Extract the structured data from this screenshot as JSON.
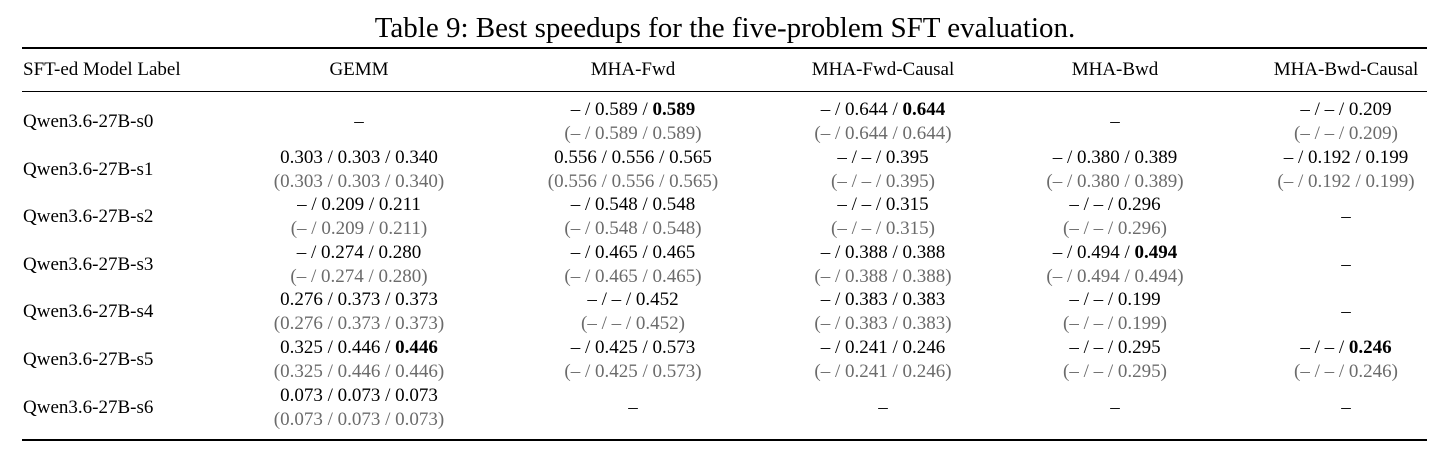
{
  "caption": "Table 9: Best speedups for the five-problem SFT evaluation.",
  "headers": [
    "SFT-ed Model Label",
    "GEMM",
    "MHA-Fwd",
    "MHA-Fwd-Causal",
    "MHA-Bwd",
    "MHA-Bwd-Causal"
  ],
  "rows": [
    {
      "label": "Qwen3.6-27B-s0",
      "cells": [
        {
          "dash": "–"
        },
        {
          "a": "– / 0.589 / ",
          "b": "0.589",
          "sub": "(– / 0.589 / 0.589)"
        },
        {
          "a": "– / 0.644 / ",
          "b": "0.644",
          "sub": "(– / 0.644 / 0.644)"
        },
        {
          "dash": "–"
        },
        {
          "a": "– / – / 0.209",
          "b": "",
          "sub": "(– / – / 0.209)"
        }
      ]
    },
    {
      "label": "Qwen3.6-27B-s1",
      "cells": [
        {
          "a": "0.303 / 0.303 / 0.340",
          "b": "",
          "sub": "(0.303 / 0.303 / 0.340)"
        },
        {
          "a": "0.556 / 0.556 / 0.565",
          "b": "",
          "sub": "(0.556 / 0.556 / 0.565)"
        },
        {
          "a": "– / – / 0.395",
          "b": "",
          "sub": "(– / – / 0.395)"
        },
        {
          "a": "– / 0.380 / 0.389",
          "b": "",
          "sub": "(– / 0.380 / 0.389)"
        },
        {
          "a": "– / 0.192 / 0.199",
          "b": "",
          "sub": "(– / 0.192 / 0.199)"
        }
      ]
    },
    {
      "label": "Qwen3.6-27B-s2",
      "cells": [
        {
          "a": "– / 0.209 / 0.211",
          "b": "",
          "sub": "(– / 0.209 / 0.211)"
        },
        {
          "a": "– / 0.548 / 0.548",
          "b": "",
          "sub": "(– / 0.548 / 0.548)"
        },
        {
          "a": "– / – / 0.315",
          "b": "",
          "sub": "(– / – / 0.315)"
        },
        {
          "a": "– / – / 0.296",
          "b": "",
          "sub": "(– / – / 0.296)"
        },
        {
          "dash": "–"
        }
      ]
    },
    {
      "label": "Qwen3.6-27B-s3",
      "cells": [
        {
          "a": "– / 0.274 / 0.280",
          "b": "",
          "sub": "(– / 0.274 / 0.280)"
        },
        {
          "a": "– / 0.465 / 0.465",
          "b": "",
          "sub": "(– / 0.465 / 0.465)"
        },
        {
          "a": "– / 0.388 / 0.388",
          "b": "",
          "sub": "(– / 0.388 / 0.388)"
        },
        {
          "a": "– / 0.494 / ",
          "b": "0.494",
          "sub": "(– / 0.494 / 0.494)"
        },
        {
          "dash": "–"
        }
      ]
    },
    {
      "label": "Qwen3.6-27B-s4",
      "cells": [
        {
          "a": "0.276 / 0.373 / 0.373",
          "b": "",
          "sub": "(0.276 / 0.373 / 0.373)"
        },
        {
          "a": "– / – / 0.452",
          "b": "",
          "sub": "(– / – / 0.452)"
        },
        {
          "a": "– / 0.383 / 0.383",
          "b": "",
          "sub": "(– / 0.383 / 0.383)"
        },
        {
          "a": "– / – / 0.199",
          "b": "",
          "sub": "(– / – / 0.199)"
        },
        {
          "dash": "–"
        }
      ]
    },
    {
      "label": "Qwen3.6-27B-s5",
      "cells": [
        {
          "a": "0.325 / 0.446 / ",
          "b": "0.446",
          "sub": "(0.325 / 0.446 / 0.446)"
        },
        {
          "a": "– / 0.425 / 0.573",
          "b": "",
          "sub": "(– / 0.425 / 0.573)"
        },
        {
          "a": "– / 0.241 / 0.246",
          "b": "",
          "sub": "(– / 0.241 / 0.246)"
        },
        {
          "a": "– / – / 0.295",
          "b": "",
          "sub": "(– / – / 0.295)"
        },
        {
          "a": "– / – / ",
          "b": "0.246",
          "sub": "(– / – / 0.246)"
        }
      ]
    },
    {
      "label": "Qwen3.6-27B-s6",
      "cells": [
        {
          "a": "0.073 / 0.073 / 0.073",
          "b": "",
          "sub": "(0.073 / 0.073 / 0.073)"
        },
        {
          "dash": "–"
        },
        {
          "dash": "–"
        },
        {
          "dash": "–"
        },
        {
          "dash": "–"
        }
      ]
    }
  ]
}
